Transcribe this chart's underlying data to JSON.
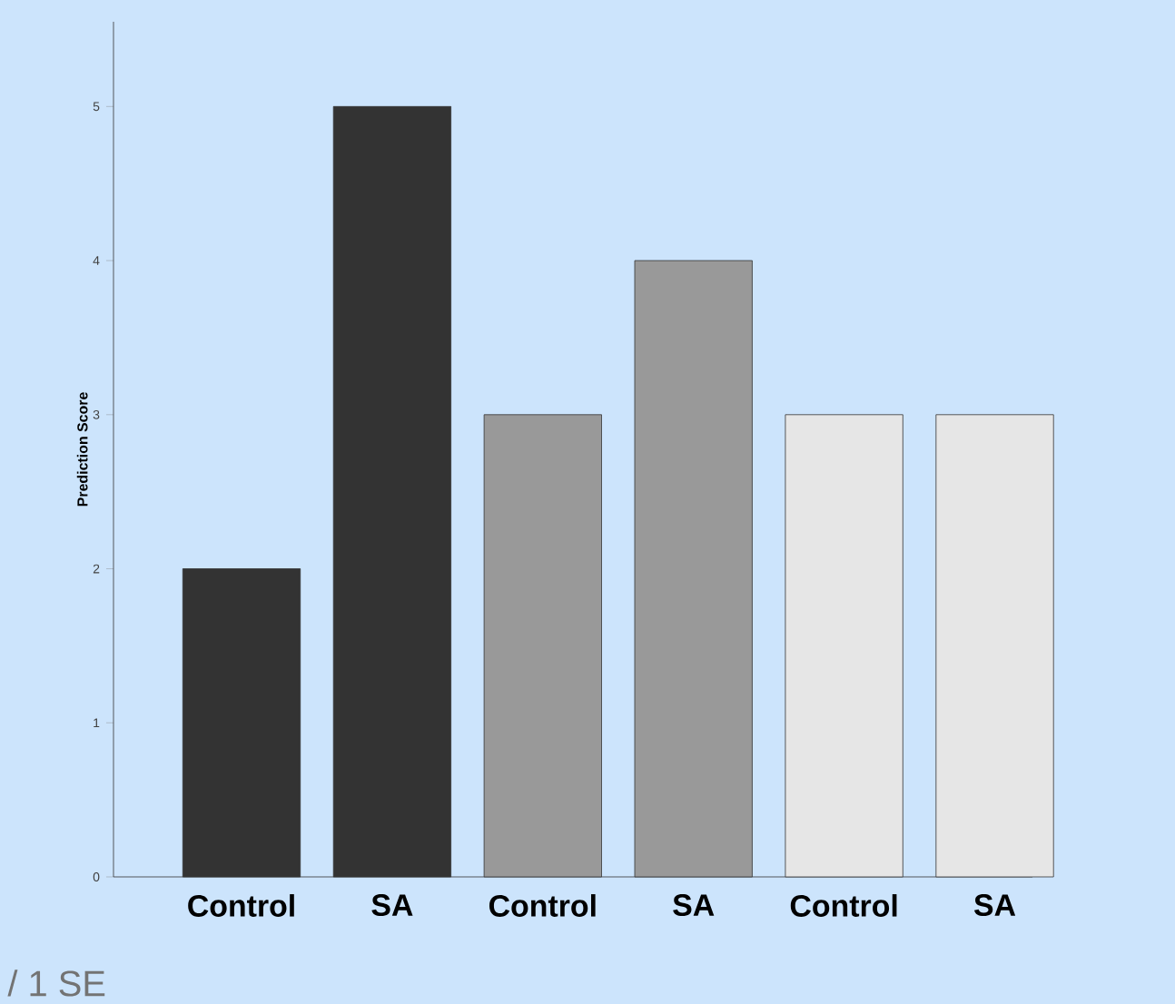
{
  "chart_data": {
    "type": "bar",
    "ylabel": "Prediction Score",
    "categories": [
      "Control",
      "SA",
      "Control",
      "SA",
      "Control",
      "SA"
    ],
    "values": [
      2,
      5,
      3,
      4,
      3,
      3
    ],
    "colors": [
      "#333333",
      "#333333",
      "#999999",
      "#999999",
      "#e6e6e6",
      "#e6e6e6"
    ],
    "ylim": [
      0,
      5.55
    ],
    "yticks": [
      0,
      1,
      2,
      3,
      4,
      5
    ],
    "annotations": [
      "/ 1 SE"
    ]
  }
}
